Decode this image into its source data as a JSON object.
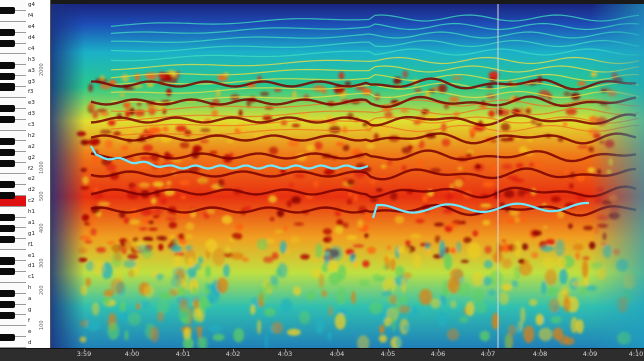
{
  "note_labels": [
    "g4",
    "f4",
    "e4",
    "d4",
    "c4",
    "h3",
    "a3",
    "g3",
    "f3",
    "e3",
    "d3",
    "c3",
    "h2",
    "a2",
    "g2",
    "f2",
    "e2",
    "d2",
    "c2",
    "h1",
    "a1",
    "g1",
    "f1",
    "e1",
    "d1",
    "c1",
    "h",
    "a",
    "g",
    "f",
    "e",
    "d"
  ],
  "freq_labels": [
    "2000",
    "1000",
    "500",
    "400",
    "300",
    "200",
    "100"
  ],
  "time_labels": [
    "3:59",
    "4:00",
    "4:01",
    "4:02",
    "4:03",
    "4:04",
    "4:05",
    "4:06",
    "4:07",
    "4:08",
    "4:09",
    "4:10"
  ],
  "active_key_note": "c2",
  "colors": {
    "low": "#1b2b8c",
    "mid": "#18c0c0",
    "warm": "#f0e020",
    "hot": "#ff4010",
    "peak": "#8a0000",
    "cursor": "#d8d8d8"
  }
}
